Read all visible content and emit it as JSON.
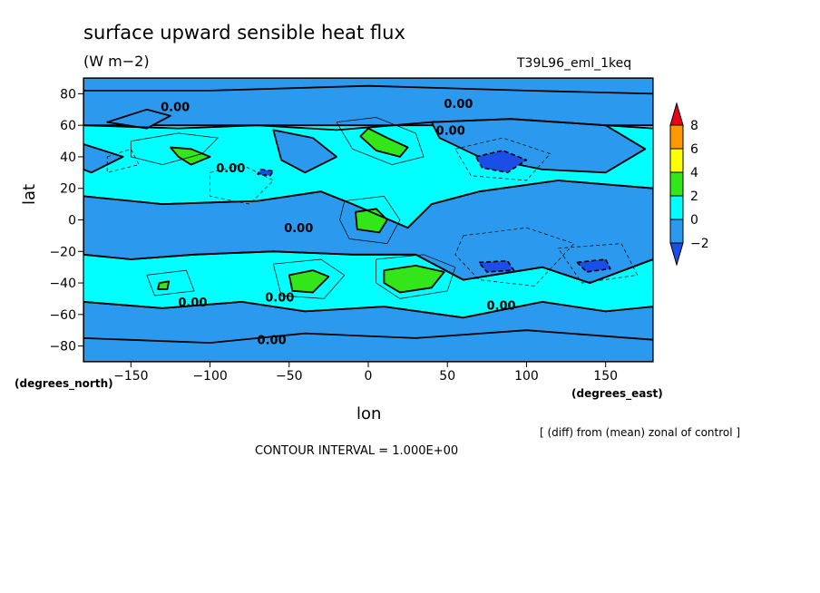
{
  "header": {
    "title": "surface upward sensible heat flux",
    "units": "(W m−2)",
    "run": "T39L96_eml_1keq"
  },
  "footer": {
    "deg_north": "(degrees_north)",
    "deg_east": "(degrees_east)",
    "note": "[ (diff) from (mean) zonal of control ]",
    "contour_interval": "CONTOUR INTERVAL = 1.000E+00"
  },
  "chart_data": {
    "type": "contour",
    "title": "surface upward sensible heat flux",
    "units": "(W m−2)",
    "xlabel": "lon",
    "ylabel": "lat",
    "xlim": [
      -180,
      180
    ],
    "ylim": [
      -90,
      90
    ],
    "xticks": [
      -150,
      -100,
      -50,
      0,
      50,
      100,
      150
    ],
    "yticks": [
      -80,
      -60,
      -40,
      -20,
      0,
      20,
      40,
      60,
      80
    ],
    "xtick_labels": [
      "−150",
      "−100",
      "−50",
      "0",
      "50",
      "100",
      "150"
    ],
    "ytick_labels": [
      "−80",
      "−60",
      "−40",
      "−20",
      "0",
      "20",
      "40",
      "60",
      "80"
    ],
    "contour_interval": 1.0,
    "contour_labels": [
      {
        "text": "0.00",
        "lon": -122,
        "lat": 72
      },
      {
        "text": "0.00",
        "lon": 57,
        "lat": 74
      },
      {
        "text": "0.00",
        "lon": 52,
        "lat": 57
      },
      {
        "text": "0.00",
        "lon": -87,
        "lat": 33
      },
      {
        "text": "0.00",
        "lon": -44,
        "lat": -5
      },
      {
        "text": "0.00",
        "lon": -56,
        "lat": -49
      },
      {
        "text": "0.00",
        "lon": -111,
        "lat": -52
      },
      {
        "text": "0.00",
        "lon": 84,
        "lat": -54
      },
      {
        "text": "0.00",
        "lon": -61,
        "lat": -76
      }
    ],
    "colorbar": {
      "levels": [
        "8",
        "6",
        "4",
        "2",
        "0",
        "−2"
      ],
      "colors": [
        "#e8001a",
        "#ff9900",
        "#ffff00",
        "#33e61a",
        "#00ffff",
        "#2b9aee",
        "#1a4ee6"
      ]
    },
    "regions": [
      {
        "value": -1,
        "color": "#2b9aee",
        "pts": [
          [
            -180,
            90
          ],
          [
            180,
            90
          ],
          [
            180,
            60
          ],
          [
            -180,
            60
          ]
        ]
      },
      {
        "value": -1,
        "color": "#2b9aee",
        "pts": [
          [
            -180,
            15
          ],
          [
            -130,
            10
          ],
          [
            -70,
            12
          ],
          [
            -30,
            18
          ],
          [
            -10,
            10
          ],
          [
            25,
            -5
          ],
          [
            40,
            10
          ],
          [
            70,
            18
          ],
          [
            120,
            25
          ],
          [
            180,
            20
          ],
          [
            180,
            -25
          ],
          [
            140,
            -40
          ],
          [
            110,
            -30
          ],
          [
            60,
            -38
          ],
          [
            30,
            -22
          ],
          [
            -10,
            -22
          ],
          [
            -60,
            -20
          ],
          [
            -110,
            -22
          ],
          [
            -150,
            -25
          ],
          [
            -180,
            -22
          ]
        ]
      },
      {
        "value": -1,
        "color": "#2b9aee",
        "pts": [
          [
            -180,
            -52
          ],
          [
            -130,
            -56
          ],
          [
            -80,
            -52
          ],
          [
            -40,
            -58
          ],
          [
            10,
            -55
          ],
          [
            60,
            -62
          ],
          [
            110,
            -52
          ],
          [
            150,
            -58
          ],
          [
            180,
            -55
          ],
          [
            180,
            -90
          ],
          [
            -180,
            -90
          ]
        ]
      },
      {
        "value": -1,
        "color": "#2b9aee",
        "pts": [
          [
            40,
            62
          ],
          [
            90,
            64
          ],
          [
            150,
            60
          ],
          [
            175,
            45
          ],
          [
            150,
            30
          ],
          [
            110,
            32
          ],
          [
            70,
            40
          ],
          [
            45,
            52
          ]
        ]
      },
      {
        "value": -1,
        "color": "#2b9aee",
        "pts": [
          [
            -165,
            62
          ],
          [
            -140,
            70
          ],
          [
            -125,
            66
          ],
          [
            -140,
            58
          ]
        ]
      },
      {
        "value": -1,
        "color": "#2b9aee",
        "pts": [
          [
            -60,
            57
          ],
          [
            -35,
            52
          ],
          [
            -20,
            40
          ],
          [
            -40,
            30
          ],
          [
            -55,
            38
          ]
        ]
      },
      {
        "value": -1,
        "color": "#2b9aee",
        "pts": [
          [
            -180,
            48
          ],
          [
            -155,
            40
          ],
          [
            -175,
            30
          ],
          [
            -180,
            32
          ]
        ]
      },
      {
        "value": -2,
        "color": "#1a4ee6",
        "pts": [
          [
            68,
            40
          ],
          [
            85,
            44
          ],
          [
            100,
            38
          ],
          [
            88,
            30
          ],
          [
            72,
            33
          ]
        ]
      },
      {
        "value": -2,
        "color": "#1a4ee6",
        "pts": [
          [
            70,
            -27
          ],
          [
            88,
            -26
          ],
          [
            92,
            -32
          ],
          [
            75,
            -33
          ]
        ]
      },
      {
        "value": -2,
        "color": "#1a4ee6",
        "pts": [
          [
            132,
            -27
          ],
          [
            150,
            -25
          ],
          [
            153,
            -31
          ],
          [
            138,
            -33
          ]
        ]
      },
      {
        "value": -2,
        "color": "#1a4ee6",
        "pts": [
          [
            -68,
            32
          ],
          [
            -60,
            31
          ],
          [
            -62,
            28
          ],
          [
            -70,
            29
          ]
        ]
      },
      {
        "value": 3,
        "color": "#33e61a",
        "pts": [
          [
            -125,
            46
          ],
          [
            -112,
            45
          ],
          [
            -100,
            40
          ],
          [
            -112,
            35
          ],
          [
            -120,
            40
          ]
        ]
      },
      {
        "value": 3,
        "color": "#33e61a",
        "pts": [
          [
            0,
            58
          ],
          [
            12,
            52
          ],
          [
            25,
            46
          ],
          [
            20,
            40
          ],
          [
            5,
            44
          ],
          [
            -5,
            53
          ]
        ]
      },
      {
        "value": 3,
        "color": "#33e61a",
        "pts": [
          [
            -8,
            5
          ],
          [
            5,
            7
          ],
          [
            12,
            0
          ],
          [
            7,
            -8
          ],
          [
            -7,
            -6
          ]
        ]
      },
      {
        "value": 3,
        "color": "#33e61a",
        "pts": [
          [
            -50,
            -35
          ],
          [
            -35,
            -32
          ],
          [
            -25,
            -36
          ],
          [
            -35,
            -46
          ],
          [
            -48,
            -45
          ]
        ]
      },
      {
        "value": 3,
        "color": "#33e61a",
        "pts": [
          [
            10,
            -32
          ],
          [
            30,
            -29
          ],
          [
            48,
            -33
          ],
          [
            40,
            -43
          ],
          [
            20,
            -46
          ],
          [
            10,
            -40
          ]
        ]
      },
      {
        "value": 3,
        "color": "#33e61a",
        "pts": [
          [
            -132,
            -40
          ],
          [
            -126,
            -39
          ],
          [
            -127,
            -44
          ],
          [
            -133,
            -44
          ]
        ]
      }
    ],
    "zero_lines": [
      [
        [
          -180,
          82
        ],
        [
          -100,
          82
        ],
        [
          0,
          85
        ],
        [
          100,
          82
        ],
        [
          180,
          80
        ]
      ],
      [
        [
          -180,
          60
        ],
        [
          -120,
          58
        ],
        [
          -70,
          60
        ],
        [
          -20,
          57
        ],
        [
          40,
          62
        ],
        [
          90,
          64
        ],
        [
          150,
          60
        ],
        [
          180,
          58
        ]
      ],
      [
        [
          -180,
          15
        ],
        [
          -130,
          10
        ],
        [
          -70,
          12
        ],
        [
          -30,
          18
        ],
        [
          -10,
          10
        ],
        [
          25,
          -5
        ],
        [
          40,
          10
        ],
        [
          70,
          18
        ],
        [
          120,
          25
        ],
        [
          180,
          20
        ]
      ],
      [
        [
          -180,
          -22
        ],
        [
          -150,
          -25
        ],
        [
          -110,
          -22
        ],
        [
          -60,
          -20
        ],
        [
          -10,
          -22
        ],
        [
          30,
          -22
        ],
        [
          60,
          -38
        ],
        [
          110,
          -30
        ],
        [
          140,
          -40
        ],
        [
          180,
          -25
        ]
      ],
      [
        [
          -180,
          -52
        ],
        [
          -130,
          -56
        ],
        [
          -80,
          -52
        ],
        [
          -40,
          -58
        ],
        [
          10,
          -55
        ],
        [
          60,
          -62
        ],
        [
          110,
          -52
        ],
        [
          150,
          -58
        ],
        [
          180,
          -55
        ]
      ],
      [
        [
          -180,
          -75
        ],
        [
          -100,
          -78
        ],
        [
          -40,
          -72
        ],
        [
          30,
          -75
        ],
        [
          100,
          -70
        ],
        [
          180,
          -76
        ]
      ]
    ],
    "positive_lines": [
      [
        [
          -150,
          50
        ],
        [
          -120,
          55
        ],
        [
          -95,
          52
        ],
        [
          -105,
          42
        ],
        [
          -130,
          35
        ],
        [
          -150,
          40
        ],
        [
          -150,
          50
        ]
      ],
      [
        [
          -20,
          62
        ],
        [
          5,
          65
        ],
        [
          30,
          55
        ],
        [
          35,
          40
        ],
        [
          15,
          35
        ],
        [
          -10,
          45
        ],
        [
          -20,
          62
        ]
      ],
      [
        [
          -15,
          12
        ],
        [
          10,
          15
        ],
        [
          20,
          0
        ],
        [
          12,
          -15
        ],
        [
          -12,
          -12
        ],
        [
          -18,
          0
        ],
        [
          -15,
          12
        ]
      ],
      [
        [
          -60,
          -28
        ],
        [
          -30,
          -25
        ],
        [
          -15,
          -35
        ],
        [
          -28,
          -50
        ],
        [
          -55,
          -48
        ],
        [
          -60,
          -28
        ]
      ],
      [
        [
          5,
          -25
        ],
        [
          35,
          -22
        ],
        [
          55,
          -30
        ],
        [
          50,
          -45
        ],
        [
          20,
          -50
        ],
        [
          5,
          -40
        ],
        [
          5,
          -25
        ]
      ],
      [
        [
          -140,
          -35
        ],
        [
          -115,
          -32
        ],
        [
          -110,
          -45
        ],
        [
          -135,
          -48
        ],
        [
          -140,
          -35
        ]
      ]
    ],
    "negative_lines": [
      [
        [
          55,
          45
        ],
        [
          85,
          52
        ],
        [
          115,
          42
        ],
        [
          100,
          25
        ],
        [
          65,
          28
        ],
        [
          55,
          45
        ]
      ],
      [
        [
          60,
          -10
        ],
        [
          100,
          -5
        ],
        [
          130,
          -15
        ],
        [
          105,
          -42
        ],
        [
          70,
          -38
        ],
        [
          55,
          -22
        ],
        [
          60,
          -10
        ]
      ],
      [
        [
          120,
          -18
        ],
        [
          160,
          -15
        ],
        [
          170,
          -35
        ],
        [
          135,
          -40
        ],
        [
          120,
          -18
        ]
      ],
      [
        [
          -100,
          30
        ],
        [
          -80,
          35
        ],
        [
          -60,
          25
        ],
        [
          -75,
          10
        ],
        [
          -100,
          15
        ],
        [
          -100,
          30
        ]
      ],
      [
        [
          -165,
          40
        ],
        [
          -150,
          45
        ],
        [
          -145,
          35
        ],
        [
          -165,
          30
        ],
        [
          -165,
          40
        ]
      ]
    ]
  }
}
